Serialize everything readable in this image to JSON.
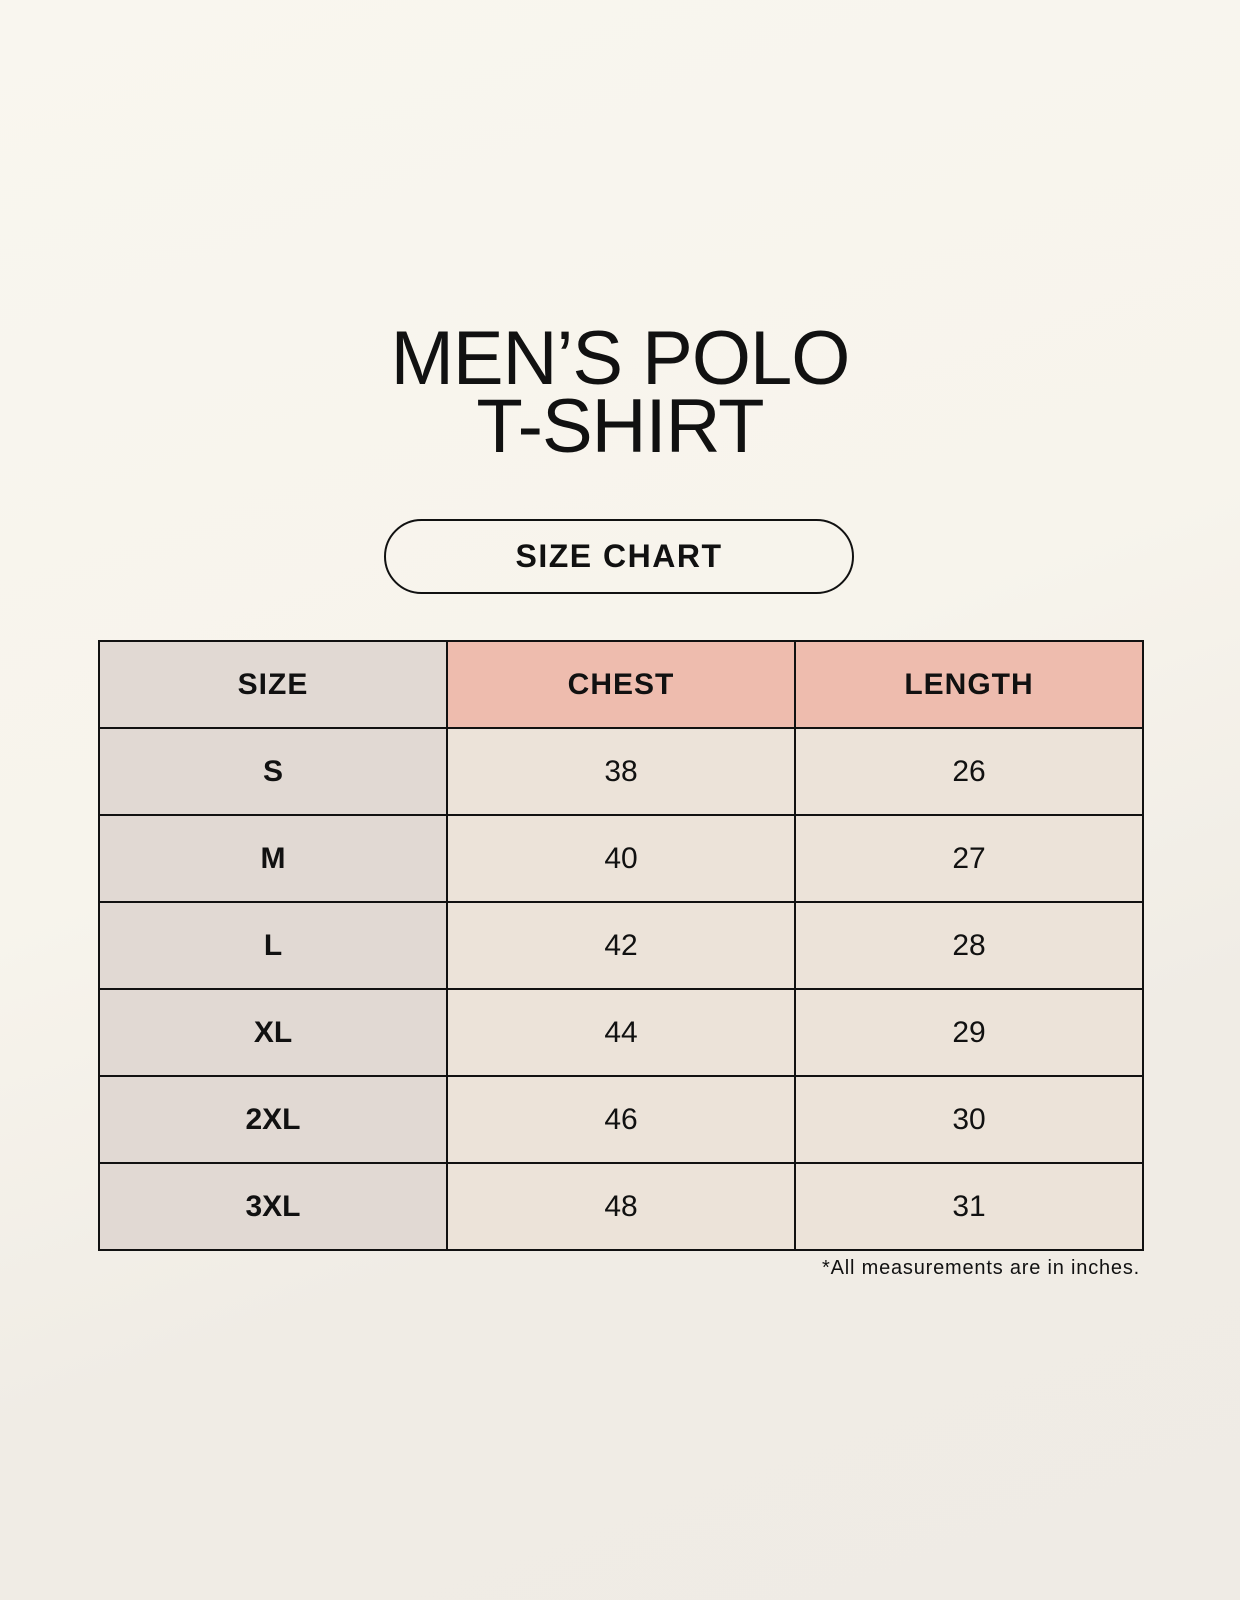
{
  "title": {
    "line1": "MEN’S POLO",
    "line2": "T-SHIRT"
  },
  "badge": "SIZE CHART",
  "table": {
    "headers": [
      "SIZE",
      "CHEST",
      "LENGTH"
    ],
    "rows": [
      [
        "S",
        "38",
        "26"
      ],
      [
        "M",
        "40",
        "27"
      ],
      [
        "L",
        "42",
        "28"
      ],
      [
        "XL",
        "44",
        "29"
      ],
      [
        "2XL",
        "46",
        "30"
      ],
      [
        "3XL",
        "48",
        "31"
      ]
    ]
  },
  "footnote": "*All measurements are in inches.",
  "colors": {
    "header_accent": "#eebcae",
    "size_column": "#e1d9d3",
    "cells": "#ece3d9"
  }
}
